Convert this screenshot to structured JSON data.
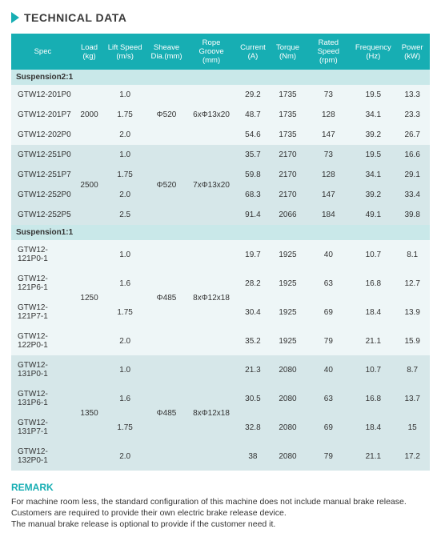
{
  "heading": "TECHNICAL DATA",
  "colors": {
    "accent": "#17aeb3",
    "row_light": "#eef6f7",
    "row_dark": "#d6e7e9",
    "subheader": "#c9e8e9",
    "text": "#333"
  },
  "columns": [
    {
      "key": "spec",
      "label": "Spec"
    },
    {
      "key": "load",
      "label": "Load\n(kg)"
    },
    {
      "key": "lift",
      "label": "Lift Speed\n(m/s)"
    },
    {
      "key": "sheave",
      "label": "Sheave\nDia.(mm)"
    },
    {
      "key": "rope",
      "label": "Rope Groove\n(mm)"
    },
    {
      "key": "current",
      "label": "Current\n(A)"
    },
    {
      "key": "torque",
      "label": "Torque\n(Nm)"
    },
    {
      "key": "rspeed",
      "label": "Rated Speed\n(rpm)"
    },
    {
      "key": "freq",
      "label": "Frequency\n(Hz)"
    },
    {
      "key": "power",
      "label": "Power\n(kW)"
    }
  ],
  "sections": [
    {
      "title": "Suspension2:1",
      "groups": [
        {
          "shade": 0,
          "load": "2000",
          "sheave": "Φ520",
          "rope": "6xΦ13x20",
          "rows": [
            {
              "spec": "GTW12-201P0",
              "lift": "1.0",
              "current": "29.2",
              "torque": "1735",
              "rspeed": "73",
              "freq": "19.5",
              "power": "13.3"
            },
            {
              "spec": "GTW12-201P7",
              "lift": "1.75",
              "current": "48.7",
              "torque": "1735",
              "rspeed": "128",
              "freq": "34.1",
              "power": "23.3"
            },
            {
              "spec": "GTW12-202P0",
              "lift": "2.0",
              "current": "54.6",
              "torque": "1735",
              "rspeed": "147",
              "freq": "39.2",
              "power": "26.7"
            }
          ]
        },
        {
          "shade": 1,
          "load": "2500",
          "sheave": "Φ520",
          "rope": "7xΦ13x20",
          "rows": [
            {
              "spec": "GTW12-251P0",
              "lift": "1.0",
              "current": "35.7",
              "torque": "2170",
              "rspeed": "73",
              "freq": "19.5",
              "power": "16.6"
            },
            {
              "spec": "GTW12-251P7",
              "lift": "1.75",
              "current": "59.8",
              "torque": "2170",
              "rspeed": "128",
              "freq": "34.1",
              "power": "29.1"
            },
            {
              "spec": "GTW12-252P0",
              "lift": "2.0",
              "current": "68.3",
              "torque": "2170",
              "rspeed": "147",
              "freq": "39.2",
              "power": "33.4"
            },
            {
              "spec": "GTW12-252P5",
              "lift": "2.5",
              "current": "91.4",
              "torque": "2066",
              "rspeed": "184",
              "freq": "49.1",
              "power": "39.8"
            }
          ]
        }
      ]
    },
    {
      "title": "Suspension1:1",
      "groups": [
        {
          "shade": 0,
          "load": "1250",
          "sheave": "Φ485",
          "rope": "8xΦ12x18",
          "rows": [
            {
              "spec": "GTW12-121P0-1",
              "lift": "1.0",
              "current": "19.7",
              "torque": "1925",
              "rspeed": "40",
              "freq": "10.7",
              "power": "8.1"
            },
            {
              "spec": "GTW12-121P6-1",
              "lift": "1.6",
              "current": "28.2",
              "torque": "1925",
              "rspeed": "63",
              "freq": "16.8",
              "power": "12.7"
            },
            {
              "spec": "GTW12-121P7-1",
              "lift": "1.75",
              "current": "30.4",
              "torque": "1925",
              "rspeed": "69",
              "freq": "18.4",
              "power": "13.9"
            },
            {
              "spec": "GTW12-122P0-1",
              "lift": "2.0",
              "current": "35.2",
              "torque": "1925",
              "rspeed": "79",
              "freq": "21.1",
              "power": "15.9"
            }
          ]
        },
        {
          "shade": 1,
          "load": "1350",
          "sheave": "Φ485",
          "rope": "8xΦ12x18",
          "rows": [
            {
              "spec": "GTW12-131P0-1",
              "lift": "1.0",
              "current": "21.3",
              "torque": "2080",
              "rspeed": "40",
              "freq": "10.7",
              "power": "8.7"
            },
            {
              "spec": "GTW12-131P6-1",
              "lift": "1.6",
              "current": "30.5",
              "torque": "2080",
              "rspeed": "63",
              "freq": "16.8",
              "power": "13.7"
            },
            {
              "spec": "GTW12-131P7-1",
              "lift": "1.75",
              "current": "32.8",
              "torque": "2080",
              "rspeed": "69",
              "freq": "18.4",
              "power": "15"
            },
            {
              "spec": "GTW12-132P0-1",
              "lift": "2.0",
              "current": "38",
              "torque": "2080",
              "rspeed": "79",
              "freq": "21.1",
              "power": "17.2"
            }
          ]
        }
      ]
    }
  ],
  "remark": {
    "title": "REMARK",
    "text": "For machine room less, the standard configuration of this machine does not include manual brake release. Customers are required to provide their own electric brake release device.\nThe manual brake release is optional to provide if the customer need it."
  }
}
